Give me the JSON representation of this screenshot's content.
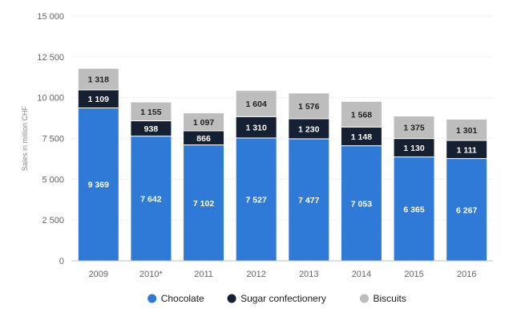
{
  "chart_data": {
    "type": "bar",
    "stacked": true,
    "title": "",
    "xlabel": "",
    "ylabel": "Sales in million CHF",
    "ylim": [
      0,
      15000
    ],
    "yticks": [
      0,
      2500,
      5000,
      7500,
      10000,
      12500,
      15000
    ],
    "ytick_labels": [
      "0",
      "2 500",
      "5 000",
      "7 500",
      "10 000",
      "12 500",
      "15 000"
    ],
    "grid": true,
    "legend_position": "bottom-center",
    "categories": [
      "2009",
      "2010*",
      "2011",
      "2012",
      "2013",
      "2014",
      "2015",
      "2016"
    ],
    "series": [
      {
        "name": "Chocolate",
        "color": "#2f7ad6",
        "text_color": "#ffffff",
        "values": [
          9369,
          7642,
          7102,
          7527,
          7477,
          7053,
          6365,
          6267
        ],
        "labels": [
          "9 369",
          "7 642",
          "7 102",
          "7 527",
          "7 477",
          "7 053",
          "6 365",
          "6 267"
        ]
      },
      {
        "name": "Sugar confectionery",
        "color": "#162033",
        "text_color": "#ffffff",
        "values": [
          1109,
          938,
          866,
          1310,
          1230,
          1148,
          1130,
          1111
        ],
        "labels": [
          "1 109",
          "938",
          "866",
          "1 310",
          "1 230",
          "1 148",
          "1 130",
          "1 111"
        ]
      },
      {
        "name": "Biscuits",
        "color": "#bdbdbd",
        "text_color": "#222222",
        "values": [
          1318,
          1155,
          1097,
          1604,
          1576,
          1568,
          1375,
          1301
        ],
        "labels": [
          "1 318",
          "1 155",
          "1 097",
          "1 604",
          "1 576",
          "1 568",
          "1 375",
          "1 301"
        ]
      }
    ]
  }
}
